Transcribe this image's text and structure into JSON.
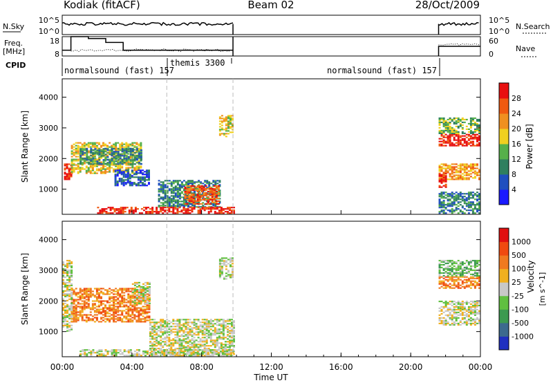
{
  "header": {
    "station": "Kodiak (fitACF)",
    "beam": "Beam 02",
    "date": "28/Oct/2009"
  },
  "top_panels": {
    "nsky_label": "N.Sky",
    "nsky_ticks": [
      "10^5",
      "10^0"
    ],
    "nsearch_label": "N.Search",
    "nsearch_ticks": [
      "10^5",
      "10^0"
    ],
    "freq_label": "Freq.",
    "freq_unit": "[MHz]",
    "freq_ticks": [
      "18",
      "8"
    ],
    "nave_label": "Nave",
    "nave_ticks": [
      "60",
      "0"
    ],
    "cpid_label": "CPID",
    "cpid_segments": [
      {
        "label": "normalsound (fast) 157",
        "start_h": 0.0
      },
      {
        "label": "themis 3300",
        "start_h": 6.0
      },
      {
        "label": "normalsound (fast) 157",
        "start_h": 21.6
      }
    ]
  },
  "power_panel": {
    "ylabel": "Slant Range [km]",
    "yticks": [
      "4000",
      "3000",
      "2000",
      "1000"
    ],
    "colorbar_label": "Power [dB]",
    "colorbar_ticks": [
      "28",
      "24",
      "20",
      "16",
      "12",
      "8",
      "4"
    ],
    "colors": [
      "#1a1aff",
      "#1f4fbf",
      "#2f7f5f",
      "#56b04a",
      "#f0d020",
      "#f09020",
      "#f05a10",
      "#e81010"
    ]
  },
  "velocity_panel": {
    "ylabel": "Slant Range [km]",
    "yticks": [
      "4000",
      "3000",
      "2000",
      "1000"
    ],
    "colorbar_label": "Velocity",
    "colorbar_unit": "[m s^-1]",
    "colorbar_ticks": [
      "1000",
      "500",
      "100",
      "25",
      "-25",
      "-100",
      "-500",
      "-1000"
    ],
    "colors": [
      "#2030c0",
      "#3c6a8e",
      "#3c9a50",
      "#60c040",
      "#c8c8c8",
      "#f0b020",
      "#f07a20",
      "#f04a10",
      "#e01010"
    ]
  },
  "x_axis": {
    "label": "Time UT",
    "ticks": [
      "00:00",
      "04:00",
      "08:00",
      "12:00",
      "16:00",
      "20:00",
      "00:00"
    ]
  },
  "chart_data": {
    "type": "heatmap",
    "x_range_hours": [
      0,
      24
    ],
    "y_range_km": [
      180,
      4600
    ],
    "gap_hours": [
      9.8,
      21.6
    ],
    "dashed_markers_hours": [
      6.0,
      9.8
    ],
    "power_regions": [
      {
        "t0": 0.1,
        "t1": 0.5,
        "r0": 1300,
        "r1": 1800,
        "level": 7
      },
      {
        "t0": 0.5,
        "t1": 4.5,
        "r0": 1500,
        "r1": 2500,
        "level": 4
      },
      {
        "t0": 1.0,
        "t1": 4.5,
        "r0": 1800,
        "r1": 2300,
        "level": 2
      },
      {
        "t0": 3.0,
        "t1": 5.0,
        "r0": 1100,
        "r1": 1600,
        "level": 1
      },
      {
        "t0": 5.5,
        "t1": 9.0,
        "r0": 400,
        "r1": 1300,
        "level": 2
      },
      {
        "t0": 7.0,
        "t1": 9.0,
        "r0": 500,
        "r1": 1100,
        "level": 6
      },
      {
        "t0": 2.0,
        "t1": 9.8,
        "r0": 200,
        "r1": 420,
        "level": 7
      },
      {
        "t0": 9.0,
        "t1": 9.8,
        "r0": 2700,
        "r1": 3400,
        "level": 4
      },
      {
        "t0": 21.6,
        "t1": 24.0,
        "r0": 2400,
        "r1": 2800,
        "level": 7
      },
      {
        "t0": 21.6,
        "t1": 24.0,
        "r0": 1300,
        "r1": 1800,
        "level": 5
      },
      {
        "t0": 21.6,
        "t1": 22.0,
        "r0": 1000,
        "r1": 1500,
        "level": 7
      },
      {
        "t0": 21.6,
        "t1": 24.0,
        "r0": 200,
        "r1": 900,
        "level": 2
      },
      {
        "t0": 21.6,
        "t1": 24.0,
        "r0": 2800,
        "r1": 3300,
        "level": 3
      }
    ],
    "velocity_regions": [
      {
        "t0": 0.5,
        "t1": 5.0,
        "r0": 1300,
        "r1": 2400,
        "level": 6
      },
      {
        "t0": 0.0,
        "t1": 0.5,
        "r0": 1000,
        "r1": 3300,
        "level": 4
      },
      {
        "t0": 5.0,
        "t1": 9.8,
        "r0": 200,
        "r1": 1400,
        "level": 4
      },
      {
        "t0": 1.0,
        "t1": 9.8,
        "r0": 200,
        "r1": 420,
        "level": 4
      },
      {
        "t0": 9.0,
        "t1": 9.8,
        "r0": 2700,
        "r1": 3400,
        "level": 4
      },
      {
        "t0": 4.0,
        "t1": 5.0,
        "r0": 1900,
        "r1": 2600,
        "level": 4
      },
      {
        "t0": 21.6,
        "t1": 24.0,
        "r0": 2400,
        "r1": 2800,
        "level": 6
      },
      {
        "t0": 21.6,
        "t1": 24.0,
        "r0": 1200,
        "r1": 2000,
        "level": 4
      },
      {
        "t0": 21.6,
        "t1": 24.0,
        "r0": 2800,
        "r1": 3300,
        "level": 3
      }
    ],
    "nsky_level": 0.55,
    "freq_mhz": 11,
    "nave_level": 12
  }
}
